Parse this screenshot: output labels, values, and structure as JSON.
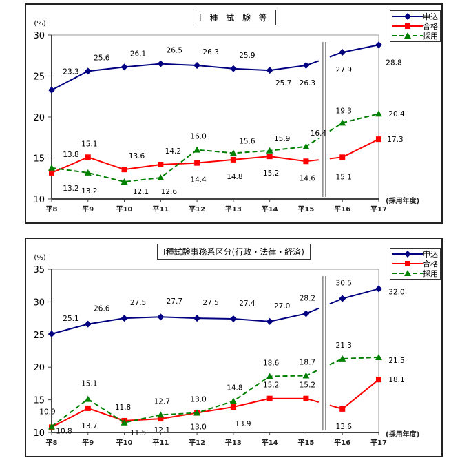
{
  "chart_data": [
    {
      "type": "line",
      "title": "Ⅰ 種 試 験 等",
      "ylabel": "(%)",
      "xlabel": "(採用年度)",
      "ylim": [
        10,
        30
      ],
      "yticks": [
        10,
        15,
        20,
        25,
        30
      ],
      "categories": [
        "平8",
        "平9",
        "平10",
        "平11",
        "平12",
        "平13",
        "平14",
        "平15",
        "平16",
        "平17"
      ],
      "break_between": [
        "平15",
        "平16"
      ],
      "series": [
        {
          "name": "申込",
          "color": "#000080",
          "marker": "diamond",
          "dash": false,
          "values": [
            23.3,
            25.6,
            26.1,
            26.5,
            26.3,
            25.9,
            25.7,
            26.3,
            27.9,
            28.8
          ],
          "labels": [
            "23.3",
            "25.6",
            "26.1",
            "26.5",
            "26.3",
            "25.9",
            "25.7",
            "26.3",
            "27.9",
            "28.8"
          ]
        },
        {
          "name": "合格",
          "color": "#ff0000",
          "marker": "square",
          "dash": false,
          "values": [
            13.2,
            15.1,
            13.6,
            14.2,
            14.4,
            14.8,
            15.2,
            14.6,
            15.1,
            17.3
          ],
          "labels": [
            "13.2",
            "15.1",
            "13.6",
            "14.2",
            "14.4",
            "14.8",
            "15.2",
            "14.6",
            "15.1",
            "17.3"
          ]
        },
        {
          "name": "採用",
          "color": "#008000",
          "marker": "triangle",
          "dash": true,
          "values": [
            13.8,
            13.2,
            12.1,
            12.6,
            16.0,
            15.6,
            15.9,
            16.4,
            19.3,
            20.4
          ],
          "labels": [
            "13.8",
            "13.2",
            "12.1",
            "12.6",
            "16.0",
            "15.6",
            "15.9",
            "16.4",
            "19.3",
            "20.4"
          ]
        }
      ],
      "legend_position": "top-right",
      "grid": false
    },
    {
      "type": "line",
      "title": "Ⅰ種試験事務系区分(行政・法律・経済)",
      "ylabel": "(%)",
      "xlabel": "(採用年度)",
      "ylim": [
        10,
        35
      ],
      "yticks": [
        10,
        15,
        20,
        25,
        30,
        35
      ],
      "categories": [
        "平8",
        "平9",
        "平10",
        "平11",
        "平12",
        "平13",
        "平14",
        "平15",
        "平16",
        "平17"
      ],
      "break_between": [
        "平15",
        "平16"
      ],
      "series": [
        {
          "name": "申込",
          "color": "#000080",
          "marker": "diamond",
          "dash": false,
          "values": [
            25.1,
            26.6,
            27.5,
            27.7,
            27.5,
            27.4,
            27.0,
            28.2,
            30.5,
            32.0
          ],
          "labels": [
            "25.1",
            "26.6",
            "27.5",
            "27.7",
            "27.5",
            "27.4",
            "27.0",
            "28.2",
            "30.5",
            "32.0"
          ]
        },
        {
          "name": "合格",
          "color": "#ff0000",
          "marker": "square",
          "dash": false,
          "values": [
            10.8,
            13.7,
            11.8,
            12.1,
            13.0,
            13.9,
            15.2,
            15.2,
            13.6,
            18.1
          ],
          "labels": [
            "10.8",
            "13.7",
            "11.8",
            "12.1",
            "13.0",
            "13.9",
            "15.2",
            "15.2",
            "13.6",
            "18.1"
          ]
        },
        {
          "name": "採用",
          "color": "#008000",
          "marker": "triangle",
          "dash": true,
          "values": [
            10.9,
            15.1,
            11.5,
            12.7,
            13.0,
            14.8,
            18.6,
            18.7,
            21.3,
            21.5
          ],
          "labels": [
            "10.9",
            "15.1",
            "11.5",
            "12.7",
            "13.0",
            "14.8",
            "18.6",
            "18.7",
            "21.3",
            "21.5"
          ]
        }
      ],
      "legend_position": "top-right",
      "grid": false
    }
  ]
}
